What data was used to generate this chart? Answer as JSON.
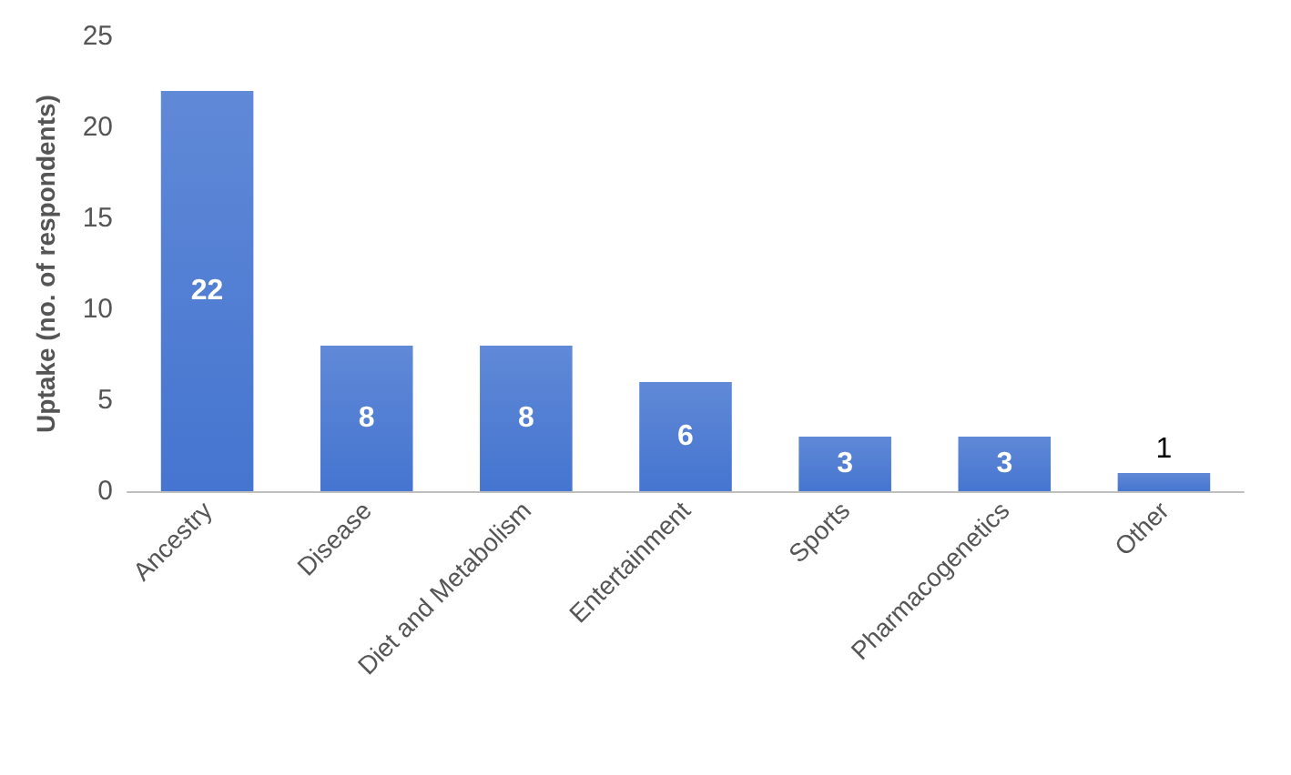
{
  "chart_data": {
    "type": "bar",
    "ylabel": "Uptake (no. of respondents)",
    "categories": [
      "Ancestry",
      "Disease",
      "Diet and Metabolism",
      "Entertainment",
      "Sports",
      "Pharmacogenetics",
      "Other"
    ],
    "values": [
      22,
      8,
      8,
      6,
      3,
      3,
      1
    ],
    "color": "#4575d0",
    "ylim": [
      0,
      25
    ],
    "yticks": [
      0,
      5,
      10,
      15,
      20,
      25
    ],
    "grid": false,
    "data_labels": true
  }
}
